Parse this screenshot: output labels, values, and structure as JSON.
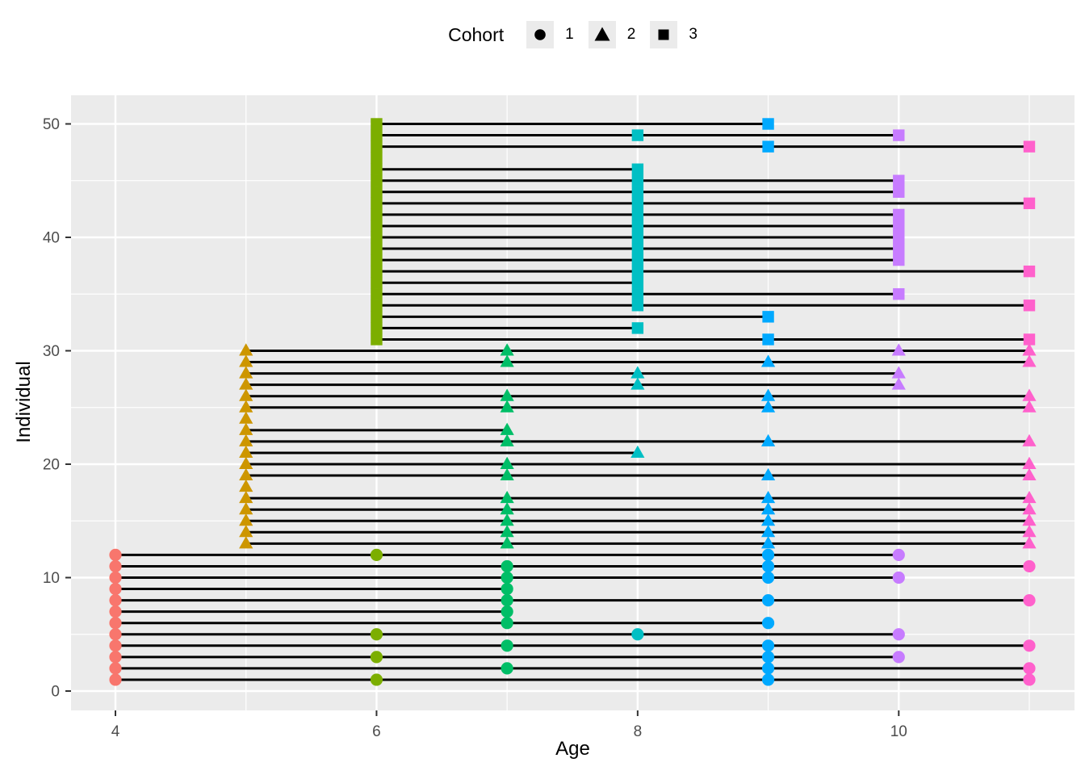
{
  "legend": {
    "title": "Cohort",
    "entries": [
      {
        "label": "1",
        "shape": "circle"
      },
      {
        "label": "2",
        "shape": "triangle"
      },
      {
        "label": "3",
        "shape": "square"
      }
    ]
  },
  "chart_data": {
    "type": "scatter",
    "title": "",
    "xlabel": "Age",
    "ylabel": "Individual",
    "legend_title": "Cohort",
    "legend_position": "top-center",
    "grid": true,
    "x_ticks": [
      4,
      6,
      8,
      10
    ],
    "x_minor_ticks": [
      5,
      7,
      9,
      11
    ],
    "y_ticks": [
      0,
      10,
      20,
      30,
      40,
      50
    ],
    "y_minor_ticks": [
      5,
      15,
      25,
      35,
      45
    ],
    "xlim": [
      3.66,
      11.35
    ],
    "ylim": [
      -1.7,
      52.5
    ],
    "mark_description": "One horizontal black segment per individual from first to last observed age; markers shaped by cohort (1=circle, 2=triangle, 3=square) and colored by age.",
    "cohort_shapes": {
      "1": "circle",
      "2": "triangle",
      "3": "square"
    },
    "cohort_start_age": {
      "1": 4,
      "2": 5,
      "3": 6
    },
    "age_colors": {
      "4": "#F8766D",
      "5": "#CD9600",
      "6": "#7CAE00",
      "7": "#00BE67",
      "8": "#00BFC4",
      "9": "#00A9FF",
      "10": "#C77CFF",
      "11": "#FF61CC"
    },
    "individuals": [
      {
        "id": 1,
        "cohort": 1,
        "ages": [
          4,
          6,
          9,
          11
        ]
      },
      {
        "id": 2,
        "cohort": 1,
        "ages": [
          4,
          7,
          9,
          11
        ]
      },
      {
        "id": 3,
        "cohort": 1,
        "ages": [
          4,
          6,
          9,
          10
        ]
      },
      {
        "id": 4,
        "cohort": 1,
        "ages": [
          4,
          7,
          9,
          11
        ]
      },
      {
        "id": 5,
        "cohort": 1,
        "ages": [
          4,
          6,
          8,
          10
        ]
      },
      {
        "id": 6,
        "cohort": 1,
        "ages": [
          4,
          7,
          9
        ]
      },
      {
        "id": 7,
        "cohort": 1,
        "ages": [
          4,
          7
        ]
      },
      {
        "id": 8,
        "cohort": 1,
        "ages": [
          4,
          7,
          9,
          11
        ]
      },
      {
        "id": 9,
        "cohort": 1,
        "ages": [
          4,
          7
        ]
      },
      {
        "id": 10,
        "cohort": 1,
        "ages": [
          4,
          7,
          9,
          10
        ]
      },
      {
        "id": 11,
        "cohort": 1,
        "ages": [
          4,
          7,
          9,
          11
        ]
      },
      {
        "id": 12,
        "cohort": 1,
        "ages": [
          4,
          6,
          9,
          10
        ]
      },
      {
        "id": 13,
        "cohort": 2,
        "ages": [
          5,
          7,
          9,
          11
        ]
      },
      {
        "id": 14,
        "cohort": 2,
        "ages": [
          5,
          7,
          9,
          11
        ]
      },
      {
        "id": 15,
        "cohort": 2,
        "ages": [
          5,
          7,
          9,
          11
        ]
      },
      {
        "id": 16,
        "cohort": 2,
        "ages": [
          5,
          7,
          9,
          11
        ]
      },
      {
        "id": 17,
        "cohort": 2,
        "ages": [
          5,
          7,
          9,
          11
        ]
      },
      {
        "id": 18,
        "cohort": 2,
        "ages": [
          5
        ]
      },
      {
        "id": 19,
        "cohort": 2,
        "ages": [
          5,
          7,
          9,
          11
        ]
      },
      {
        "id": 20,
        "cohort": 2,
        "ages": [
          5,
          7,
          11
        ]
      },
      {
        "id": 21,
        "cohort": 2,
        "ages": [
          5,
          8
        ]
      },
      {
        "id": 22,
        "cohort": 2,
        "ages": [
          5,
          7,
          9,
          11
        ]
      },
      {
        "id": 23,
        "cohort": 2,
        "ages": [
          5,
          7
        ]
      },
      {
        "id": 24,
        "cohort": 2,
        "ages": [
          5
        ]
      },
      {
        "id": 25,
        "cohort": 2,
        "ages": [
          5,
          7,
          9,
          11
        ]
      },
      {
        "id": 26,
        "cohort": 2,
        "ages": [
          5,
          7,
          9,
          11
        ]
      },
      {
        "id": 27,
        "cohort": 2,
        "ages": [
          5,
          8,
          10
        ]
      },
      {
        "id": 28,
        "cohort": 2,
        "ages": [
          5,
          8,
          10
        ]
      },
      {
        "id": 29,
        "cohort": 2,
        "ages": [
          5,
          7,
          9,
          11
        ]
      },
      {
        "id": 30,
        "cohort": 2,
        "ages": [
          5,
          7,
          10,
          11
        ]
      },
      {
        "id": 31,
        "cohort": 3,
        "ages": [
          6,
          9,
          11
        ]
      },
      {
        "id": 32,
        "cohort": 3,
        "ages": [
          6,
          8
        ]
      },
      {
        "id": 33,
        "cohort": 3,
        "ages": [
          6,
          9
        ]
      },
      {
        "id": 34,
        "cohort": 3,
        "ages": [
          6,
          8,
          11
        ]
      },
      {
        "id": 35,
        "cohort": 3,
        "ages": [
          6,
          8,
          10
        ]
      },
      {
        "id": 36,
        "cohort": 3,
        "ages": [
          6,
          8
        ]
      },
      {
        "id": 37,
        "cohort": 3,
        "ages": [
          6,
          8,
          11
        ]
      },
      {
        "id": 38,
        "cohort": 3,
        "ages": [
          6,
          8,
          10
        ]
      },
      {
        "id": 39,
        "cohort": 3,
        "ages": [
          6,
          8,
          10
        ]
      },
      {
        "id": 40,
        "cohort": 3,
        "ages": [
          6,
          8,
          10
        ]
      },
      {
        "id": 41,
        "cohort": 3,
        "ages": [
          6,
          8,
          10
        ]
      },
      {
        "id": 42,
        "cohort": 3,
        "ages": [
          6,
          8,
          10
        ]
      },
      {
        "id": 43,
        "cohort": 3,
        "ages": [
          6,
          8,
          11
        ]
      },
      {
        "id": 44,
        "cohort": 3,
        "ages": [
          6,
          8,
          10
        ]
      },
      {
        "id": 45,
        "cohort": 3,
        "ages": [
          6,
          8,
          10
        ]
      },
      {
        "id": 46,
        "cohort": 3,
        "ages": [
          6,
          8
        ]
      },
      {
        "id": 47,
        "cohort": 3,
        "ages": [
          6
        ]
      },
      {
        "id": 48,
        "cohort": 3,
        "ages": [
          6,
          9,
          11
        ]
      },
      {
        "id": 49,
        "cohort": 3,
        "ages": [
          6,
          8,
          10
        ]
      },
      {
        "id": 50,
        "cohort": 3,
        "ages": [
          6,
          9
        ]
      }
    ]
  },
  "style": {
    "panel_bg": "#EBEBEB",
    "grid_color": "#FFFFFF",
    "segment_color": "#000000",
    "tick_mark_color": "#333333",
    "tick_label_color": "#4D4D4D",
    "axis_title_color": "#000000",
    "legend_key_bg": "#EBEBEB",
    "legend_marker_color": "#000000"
  }
}
